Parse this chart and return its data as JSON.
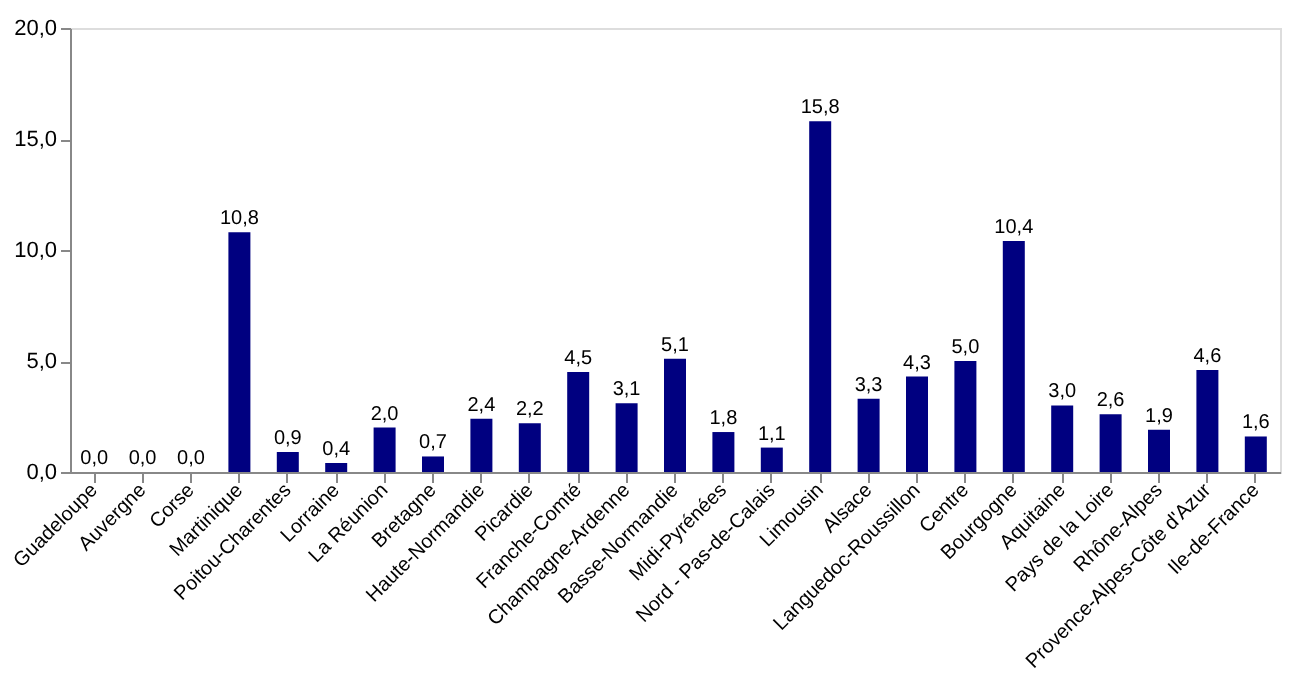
{
  "chart_data": {
    "type": "bar",
    "categories": [
      "Guadeloupe",
      "Auvergne",
      "Corse",
      "Martinique",
      "Poitou-Charentes",
      "Lorraine",
      "La Réunion",
      "Bretagne",
      "Haute-Normandie",
      "Picardie",
      "Franche-Comté",
      "Champagne-Ardenne",
      "Basse-Normandie",
      "Midi-Pyrénées",
      "Nord - Pas-de-Calais",
      "Limousin",
      "Alsace",
      "Languedoc-Roussillon",
      "Centre",
      "Bourgogne",
      "Aquitaine",
      "Pays de la Loire",
      "Rhône-Alpes",
      "Provence-Alpes-Côte d'Azur",
      "Ile-de-France"
    ],
    "values": [
      0.0,
      0.0,
      0.0,
      10.8,
      0.9,
      0.4,
      2.0,
      0.7,
      2.4,
      2.2,
      4.5,
      3.1,
      5.1,
      1.8,
      1.1,
      15.8,
      3.3,
      4.3,
      5.0,
      10.4,
      3.0,
      2.6,
      1.9,
      4.6,
      1.6
    ],
    "value_labels": [
      "0,0",
      "0,0",
      "0,0",
      "10,8",
      "0,9",
      "0,4",
      "2,0",
      "0,7",
      "2,4",
      "2,2",
      "4,5",
      "3,1",
      "5,1",
      "1,8",
      "1,1",
      "15,8",
      "3,3",
      "4,3",
      "5,0",
      "10,4",
      "3,0",
      "2,6",
      "1,9",
      "4,6",
      "1,6"
    ],
    "color": "#000080",
    "ylim": [
      0,
      20
    ],
    "yticks": [
      {
        "value": 0,
        "label": "0,0"
      },
      {
        "value": 5,
        "label": "5,0"
      },
      {
        "value": 10,
        "label": "10,0"
      },
      {
        "value": 15,
        "label": "15,0"
      },
      {
        "value": 20,
        "label": "20,0"
      }
    ],
    "grid": false
  }
}
